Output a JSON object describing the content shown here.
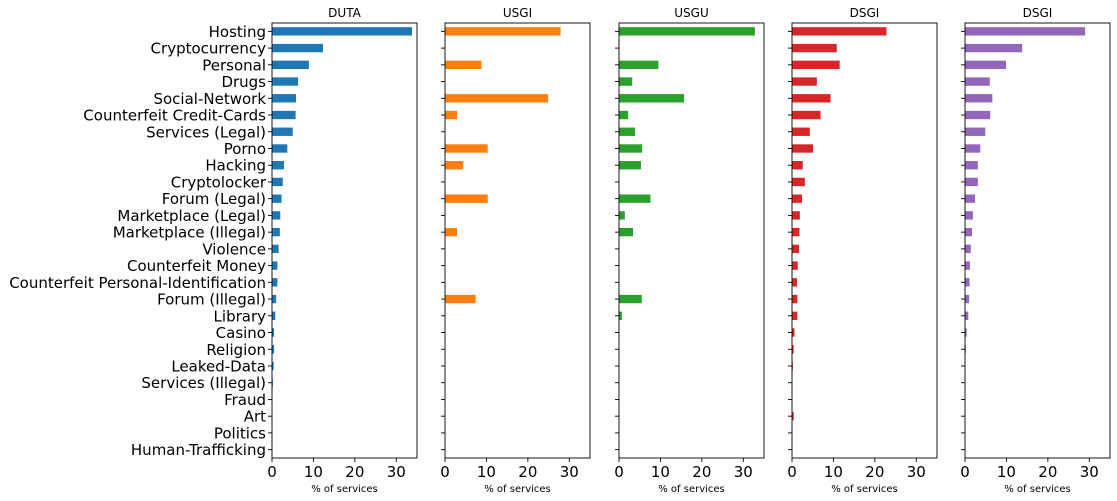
{
  "chart_data": {
    "type": "bar",
    "orientation": "horizontal",
    "categories": [
      "Hosting",
      "Cryptocurrency",
      "Personal",
      "Drugs",
      "Social-Network",
      "Counterfeit Credit-Cards",
      "Services (Legal)",
      "Porno",
      "Hacking",
      "Cryptolocker",
      "Forum (Legal)",
      "Marketplace (Legal)",
      "Marketplace (Illegal)",
      "Violence",
      "Counterfeit Money",
      "Counterfeit Personal-Identification",
      "Forum (Illegal)",
      "Library",
      "Casino",
      "Religion",
      "Leaked-Data",
      "Services (Illegal)",
      "Fraud",
      "Art",
      "Politics",
      "Human-Trafficking"
    ],
    "xlim": [
      0,
      35
    ],
    "xticks": [
      0,
      10,
      20,
      30
    ],
    "xlabel": "% of services",
    "panels": [
      {
        "title": "DUTA",
        "color": "#1f77b4",
        "values": [
          33.8,
          12.3,
          8.9,
          6.3,
          5.8,
          5.7,
          5.0,
          3.7,
          2.9,
          2.6,
          2.3,
          2.0,
          1.9,
          1.6,
          1.3,
          1.3,
          1.0,
          0.8,
          0.5,
          0.5,
          0.4,
          0.2,
          0.1,
          0.1,
          0.1,
          0.1
        ]
      },
      {
        "title": "USGI",
        "color": "#ff7f0e",
        "values": [
          27.9,
          0,
          8.8,
          0,
          24.9,
          2.9,
          0,
          10.3,
          4.4,
          0,
          10.3,
          0,
          2.9,
          0,
          0,
          0,
          7.4,
          0,
          0,
          0,
          0,
          0,
          0,
          0,
          0,
          0
        ]
      },
      {
        "title": "USGU",
        "color": "#2ca02c",
        "values": [
          32.8,
          0,
          9.5,
          3.2,
          15.7,
          2.2,
          3.9,
          5.6,
          5.3,
          0,
          7.6,
          1.4,
          3.4,
          0,
          0,
          0,
          5.5,
          0.7,
          0,
          0,
          0,
          0,
          0,
          0,
          0,
          0
        ]
      },
      {
        "title": "DSGI",
        "color": "#d62728",
        "values": [
          22.8,
          10.8,
          11.5,
          6.0,
          9.3,
          6.9,
          4.3,
          5.1,
          2.6,
          3.1,
          2.4,
          1.9,
          1.8,
          1.7,
          1.4,
          1.2,
          1.3,
          1.3,
          0.6,
          0.4,
          0.2,
          0.1,
          0.1,
          0.4,
          0.1,
          0.1
        ]
      },
      {
        "title": "DSGI",
        "color": "#9467bd",
        "values": [
          29.0,
          13.8,
          9.9,
          6.0,
          6.6,
          6.1,
          4.9,
          3.7,
          3.1,
          3.1,
          2.4,
          1.9,
          1.7,
          1.4,
          1.2,
          1.1,
          1.0,
          0.8,
          0.4,
          0.2,
          0.1,
          0.1,
          0.1,
          0.1,
          0.05,
          0.05
        ]
      }
    ]
  }
}
